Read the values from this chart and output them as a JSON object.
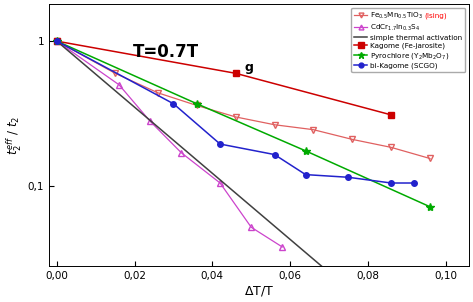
{
  "xlabel": "ΔT/T",
  "ylabel": "t$_2^{eff}$ / t$_2$",
  "xlim": [
    -0.002,
    0.106
  ],
  "ylim_log": [
    0.028,
    1.8
  ],
  "annotation_T": "T=0.7T",
  "annotation_g": "g",
  "series": {
    "fe_mn": {
      "label": "Fe$_{0.5}$Mn$_{0.5}$TiO$_3$ ",
      "label_ising": "(Ising)",
      "color": "#e06060",
      "marker": "v",
      "markersize": 4,
      "fillstyle": "none",
      "linestyle": "-",
      "linewidth": 0.9,
      "x": [
        0.0,
        0.015,
        0.026,
        0.036,
        0.046,
        0.056,
        0.066,
        0.076,
        0.086,
        0.096
      ],
      "y": [
        1.0,
        0.6,
        0.44,
        0.36,
        0.3,
        0.265,
        0.245,
        0.21,
        0.185,
        0.155
      ]
    },
    "cdcr": {
      "label": "CdCr$_{1.7}$In$_{0.3}$S$_4$",
      "color": "#cc44cc",
      "marker": "^",
      "markersize": 4,
      "fillstyle": "none",
      "linestyle": "-",
      "linewidth": 0.9,
      "x": [
        0.0,
        0.016,
        0.024,
        0.032,
        0.042,
        0.05,
        0.058
      ],
      "y": [
        1.0,
        0.5,
        0.28,
        0.17,
        0.105,
        0.052,
        0.038
      ]
    },
    "thermal": {
      "label": "simple thermal activation",
      "color": "#404040",
      "linestyle": "-",
      "linewidth": 1.1,
      "x": [
        0.0,
        0.092
      ],
      "y": [
        1.0,
        0.008
      ]
    },
    "kagome": {
      "label": "Kagome (Fe-jarosite)",
      "color": "#cc0000",
      "marker": "s",
      "markersize": 5,
      "linestyle": "-",
      "linewidth": 1.1,
      "x": [
        0.0,
        0.046,
        0.086
      ],
      "y": [
        1.0,
        0.6,
        0.31
      ]
    },
    "pyrochlore": {
      "label": "Pyrochlore (Y$_2$Mb$_2$O$_7$)",
      "color": "#00aa00",
      "marker": "*",
      "markersize": 6,
      "linestyle": "-",
      "linewidth": 1.1,
      "x": [
        0.0,
        0.036,
        0.064,
        0.096
      ],
      "y": [
        1.0,
        0.37,
        0.175,
        0.072
      ]
    },
    "bi_kagome": {
      "label": "bi-Kagome (SCGO)",
      "color": "#2222cc",
      "marker": "o",
      "markersize": 4,
      "linestyle": "-",
      "linewidth": 1.1,
      "x": [
        0.0,
        0.03,
        0.042,
        0.056,
        0.064,
        0.075,
        0.086,
        0.092
      ],
      "y": [
        1.0,
        0.37,
        0.195,
        0.165,
        0.12,
        0.115,
        0.105,
        0.105
      ]
    }
  }
}
